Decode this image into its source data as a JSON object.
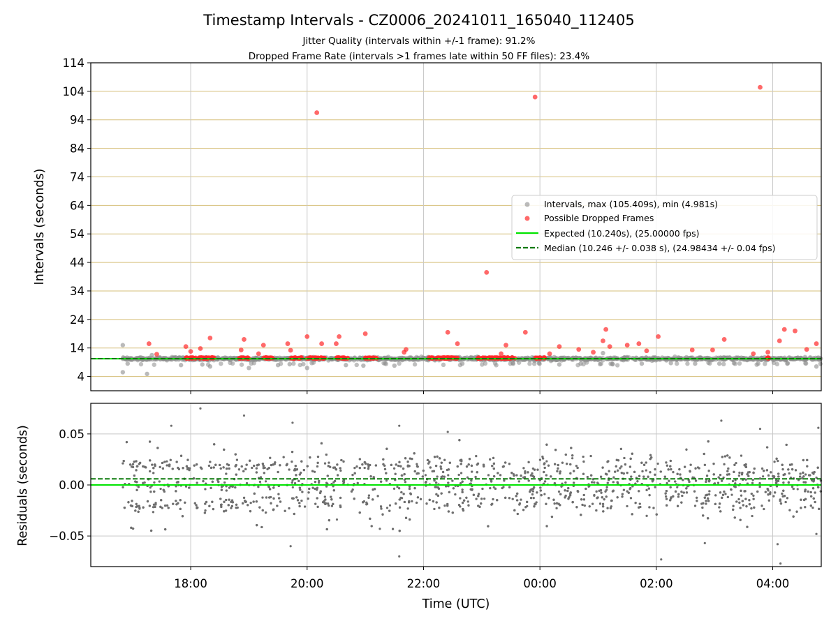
{
  "figure": {
    "title": "Timestamp Intervals - CZ0006_20241011_165040_112405",
    "subtitle_1": "Jitter Quality (intervals within +/-1 frame): 91.2%",
    "subtitle_2": "Dropped Frame Rate (intervals >1 frames late within 50 FF files): 23.4%"
  },
  "chart_data": [
    {
      "type": "scatter",
      "panel": "intervals",
      "xlabel": "",
      "ylabel": "Intervals (seconds)",
      "xlim": [
        "16:17",
        "04:50"
      ],
      "ylim": [
        -1,
        114
      ],
      "yticks": [
        4,
        14,
        24,
        34,
        44,
        54,
        64,
        74,
        84,
        94,
        104,
        114
      ],
      "xticks": [
        "18:00",
        "20:00",
        "22:00",
        "00:00",
        "02:00",
        "04:00"
      ],
      "legend_position": "center-right",
      "colors": {
        "intervals": "#8c8c8c",
        "dropped": "#ff2a2a",
        "expected": "#00e400",
        "median": "#0b7a0b",
        "hgrid": "#d6bf7a",
        "vgrid": "#c8c8c8"
      },
      "legend": [
        "Intervals, max (105.409s), min (4.981s)",
        "Possible Dropped Frames",
        "Expected (10.240s), (25.00000 fps)",
        "Median (10.246 +/- 0.038 s), (24.98434 +/- 0.04 fps)"
      ],
      "expected": 10.24,
      "median": 10.246,
      "series": [
        {
          "name": "Intervals, max (105.409s), min (4.981s)",
          "points": [
            {
              "x": "16:50",
              "y": 15.0
            },
            {
              "x": "16:50",
              "y": 5.5
            },
            {
              "x": "17:15",
              "y": 4.9
            },
            {
              "x": "16:55",
              "y": 8.5
            },
            {
              "x": "17:20",
              "y": 11.5
            },
            {
              "x": "17:50",
              "y": 8.0
            },
            {
              "x": "18:12",
              "y": 8.2
            },
            {
              "x": "18:20",
              "y": 7.5
            },
            {
              "x": "19:00",
              "y": 7.0
            },
            {
              "x": "19:30",
              "y": 8.0
            },
            {
              "x": "19:42",
              "y": 8.3
            },
            {
              "x": "20:00",
              "y": 7.0
            },
            {
              "x": "20:40",
              "y": 8.0
            },
            {
              "x": "20:58",
              "y": 7.8
            },
            {
              "x": "21:30",
              "y": 7.8
            },
            {
              "x": "22:40",
              "y": 8.5
            },
            {
              "x": "23:32",
              "y": 8.7
            },
            {
              "x": "23:59",
              "y": 8.7
            },
            {
              "x": "00:20",
              "y": 8.2
            },
            {
              "x": "00:42",
              "y": 8.5
            },
            {
              "x": "01:05",
              "y": 12.2
            },
            {
              "x": "01:15",
              "y": 8.3
            },
            {
              "x": "01:45",
              "y": 8.5
            },
            {
              "x": "02:15",
              "y": 8.7
            },
            {
              "x": "02:40",
              "y": 8.5
            },
            {
              "x": "03:05",
              "y": 8.5
            },
            {
              "x": "03:20",
              "y": 8.7
            },
            {
              "x": "03:45",
              "y": 8.5
            },
            {
              "x": "04:15",
              "y": 8.5
            },
            {
              "x": "04:45",
              "y": 7.5
            }
          ]
        },
        {
          "name": "Possible Dropped Frames",
          "points": [
            {
              "x": "17:17",
              "y": 15.5
            },
            {
              "x": "17:25",
              "y": 11.8
            },
            {
              "x": "17:55",
              "y": 14.5
            },
            {
              "x": "18:00",
              "y": 12.8
            },
            {
              "x": "18:10",
              "y": 13.8
            },
            {
              "x": "18:20",
              "y": 17.5
            },
            {
              "x": "18:52",
              "y": 13.3
            },
            {
              "x": "18:55",
              "y": 17.0
            },
            {
              "x": "19:10",
              "y": 12.0
            },
            {
              "x": "19:15",
              "y": 15.0
            },
            {
              "x": "19:40",
              "y": 15.5
            },
            {
              "x": "19:43",
              "y": 13.2
            },
            {
              "x": "20:00",
              "y": 18.0
            },
            {
              "x": "20:10",
              "y": 96.5
            },
            {
              "x": "20:15",
              "y": 15.5
            },
            {
              "x": "20:30",
              "y": 15.5
            },
            {
              "x": "20:33",
              "y": 18.0
            },
            {
              "x": "21:00",
              "y": 19.0
            },
            {
              "x": "21:40",
              "y": 12.5
            },
            {
              "x": "21:42",
              "y": 13.5
            },
            {
              "x": "22:25",
              "y": 19.5
            },
            {
              "x": "22:35",
              "y": 15.5
            },
            {
              "x": "23:05",
              "y": 40.5
            },
            {
              "x": "23:20",
              "y": 12.0
            },
            {
              "x": "23:25",
              "y": 15.0
            },
            {
              "x": "23:45",
              "y": 19.5
            },
            {
              "x": "23:55",
              "y": 102.0
            },
            {
              "x": "00:10",
              "y": 12.0
            },
            {
              "x": "00:20",
              "y": 14.5
            },
            {
              "x": "00:40",
              "y": 13.5
            },
            {
              "x": "00:55",
              "y": 12.5
            },
            {
              "x": "01:05",
              "y": 16.5
            },
            {
              "x": "01:08",
              "y": 20.5
            },
            {
              "x": "01:12",
              "y": 14.5
            },
            {
              "x": "01:30",
              "y": 15.0
            },
            {
              "x": "01:42",
              "y": 15.5
            },
            {
              "x": "01:50",
              "y": 13.0
            },
            {
              "x": "02:02",
              "y": 18.0
            },
            {
              "x": "02:37",
              "y": 13.3
            },
            {
              "x": "02:58",
              "y": 13.3
            },
            {
              "x": "03:10",
              "y": 17.0
            },
            {
              "x": "03:40",
              "y": 12.0
            },
            {
              "x": "03:47",
              "y": 105.4
            },
            {
              "x": "03:55",
              "y": 12.5
            },
            {
              "x": "04:07",
              "y": 16.5
            },
            {
              "x": "04:12",
              "y": 20.5
            },
            {
              "x": "04:23",
              "y": 20.0
            },
            {
              "x": "04:35",
              "y": 13.5
            },
            {
              "x": "04:45",
              "y": 15.5
            }
          ]
        }
      ]
    },
    {
      "type": "scatter",
      "panel": "residuals",
      "xlabel": "Time (UTC)",
      "ylabel": "Residuals (seconds)",
      "xlim": [
        "16:17",
        "04:50"
      ],
      "ylim": [
        -0.08,
        0.08
      ],
      "yticks": [
        0.05,
        0.0,
        -0.05
      ],
      "ytick_labels": [
        "0.05",
        "0.00",
        "−0.05"
      ],
      "xticks": [
        "18:00",
        "20:00",
        "22:00",
        "00:00",
        "02:00",
        "04:00"
      ],
      "expected": 0.0,
      "median": 0.006,
      "series": [
        {
          "name": "",
          "bands": [
            0.02,
            0.0,
            -0.02
          ],
          "outliers": [
            {
              "x": "18:10",
              "y": 0.075
            },
            {
              "x": "18:55",
              "y": 0.068
            },
            {
              "x": "19:45",
              "y": 0.061
            },
            {
              "x": "17:40",
              "y": 0.058
            },
            {
              "x": "21:35",
              "y": 0.058
            },
            {
              "x": "22:25",
              "y": 0.052
            },
            {
              "x": "19:43",
              "y": -0.06
            },
            {
              "x": "21:35",
              "y": -0.07
            },
            {
              "x": "21:15",
              "y": -0.043
            },
            {
              "x": "02:05",
              "y": -0.073
            },
            {
              "x": "02:50",
              "y": -0.057
            },
            {
              "x": "03:07",
              "y": 0.063
            },
            {
              "x": "04:05",
              "y": -0.058
            },
            {
              "x": "04:08",
              "y": -0.077
            },
            {
              "x": "04:47",
              "y": 0.056
            },
            {
              "x": "04:45",
              "y": -0.048
            },
            {
              "x": "03:47",
              "y": 0.055
            }
          ]
        }
      ]
    }
  ]
}
